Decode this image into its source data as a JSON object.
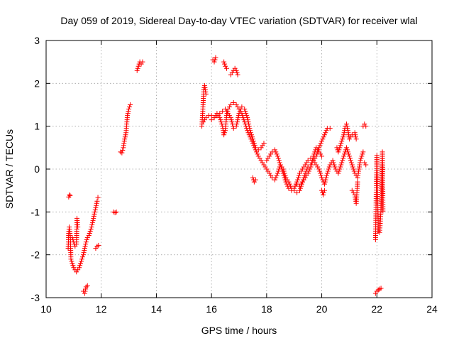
{
  "chart_data": {
    "type": "scatter",
    "title": "Day 059 of 2019, Sidereal Day-to-day VTEC variation (SDTVAR) for receiver wlal",
    "xlabel": "GPS time / hours",
    "ylabel": "SDTVAR / TECUs",
    "xlim": [
      10,
      24
    ],
    "ylim": [
      -3,
      3
    ],
    "xticks": [
      10,
      12,
      14,
      16,
      18,
      20,
      22,
      24
    ],
    "yticks": [
      -3,
      -2,
      -1,
      0,
      1,
      2,
      3
    ],
    "grid": true,
    "marker": "+",
    "color": "#ff0000",
    "series": [
      {
        "name": "SDTVAR",
        "segments": [
          [
            [
              10.8,
              -1.85
            ],
            [
              10.82,
              -1.5
            ],
            [
              10.84,
              -1.35
            ],
            [
              10.86,
              -1.45
            ],
            [
              10.88,
              -1.6
            ],
            [
              10.9,
              -2.1
            ],
            [
              10.95,
              -2.2
            ],
            [
              11.0,
              -2.3
            ],
            [
              11.05,
              -2.35
            ],
            [
              11.1,
              -2.4
            ],
            [
              11.15,
              -2.35
            ],
            [
              11.2,
              -2.3
            ],
            [
              11.25,
              -2.2
            ],
            [
              11.3,
              -2.1
            ],
            [
              11.35,
              -2.0
            ],
            [
              11.4,
              -1.85
            ],
            [
              11.45,
              -1.7
            ],
            [
              11.5,
              -1.6
            ],
            [
              11.55,
              -1.55
            ],
            [
              11.6,
              -1.45
            ],
            [
              11.65,
              -1.35
            ],
            [
              11.7,
              -1.2
            ],
            [
              11.75,
              -1.05
            ],
            [
              11.8,
              -0.9
            ],
            [
              11.85,
              -0.75
            ],
            [
              11.88,
              -0.66
            ]
          ],
          [
            [
              10.82,
              -0.65
            ],
            [
              10.85,
              -0.6
            ],
            [
              10.87,
              -0.62
            ]
          ],
          [
            [
              10.95,
              -1.6
            ],
            [
              11.0,
              -1.7
            ],
            [
              11.05,
              -1.8
            ],
            [
              11.1,
              -1.75
            ],
            [
              11.12,
              -1.15
            ],
            [
              11.15,
              -1.35
            ]
          ],
          [
            [
              11.35,
              -2.85
            ],
            [
              11.4,
              -2.9
            ],
            [
              11.45,
              -2.75
            ],
            [
              11.5,
              -2.72
            ]
          ],
          [
            [
              11.8,
              -1.85
            ],
            [
              11.85,
              -1.8
            ],
            [
              11.9,
              -1.78
            ]
          ],
          [
            [
              12.45,
              -1.0
            ],
            [
              12.5,
              -1.02
            ],
            [
              12.55,
              -1.0
            ]
          ],
          [
            [
              12.7,
              0.4
            ],
            [
              12.75,
              0.38
            ],
            [
              12.8,
              0.5
            ],
            [
              12.85,
              0.7
            ],
            [
              12.9,
              0.85
            ],
            [
              12.95,
              1.25
            ],
            [
              13.0,
              1.4
            ],
            [
              13.05,
              1.5
            ]
          ],
          [
            [
              13.3,
              2.3
            ],
            [
              13.35,
              2.4
            ],
            [
              13.4,
              2.5
            ],
            [
              13.45,
              2.45
            ],
            [
              13.5,
              2.5
            ]
          ],
          [
            [
              15.65,
              1.0
            ],
            [
              15.68,
              1.3
            ],
            [
              15.7,
              1.6
            ],
            [
              15.72,
              1.85
            ],
            [
              15.75,
              1.95
            ],
            [
              15.8,
              1.75
            ]
          ],
          [
            [
              15.7,
              1.1
            ],
            [
              15.8,
              1.2
            ],
            [
              15.9,
              1.25
            ],
            [
              16.0,
              1.25
            ],
            [
              16.1,
              1.2
            ],
            [
              16.2,
              1.3
            ],
            [
              16.3,
              1.2
            ],
            [
              16.4,
              1.0
            ],
            [
              16.45,
              0.8
            ],
            [
              16.5,
              0.9
            ],
            [
              16.55,
              1.25
            ],
            [
              16.6,
              1.4
            ],
            [
              16.7,
              1.5
            ],
            [
              16.8,
              1.55
            ],
            [
              16.9,
              1.5
            ],
            [
              17.0,
              1.4
            ],
            [
              17.1,
              1.3
            ],
            [
              17.2,
              1.1
            ],
            [
              17.3,
              0.9
            ],
            [
              17.4,
              0.75
            ],
            [
              17.5,
              0.6
            ],
            [
              17.6,
              0.45
            ],
            [
              17.7,
              0.3
            ],
            [
              17.8,
              0.2
            ],
            [
              17.9,
              0.1
            ],
            [
              18.0,
              0.0
            ],
            [
              18.1,
              -0.1
            ],
            [
              18.2,
              -0.2
            ],
            [
              18.3,
              -0.25
            ],
            [
              18.4,
              -0.1
            ],
            [
              18.5,
              0.1
            ],
            [
              18.6,
              0.0
            ],
            [
              18.7,
              -0.2
            ],
            [
              18.8,
              -0.3
            ],
            [
              18.9,
              -0.45
            ],
            [
              19.0,
              -0.5
            ],
            [
              19.1,
              -0.55
            ],
            [
              19.2,
              -0.5
            ],
            [
              19.3,
              -0.3
            ],
            [
              19.4,
              -0.1
            ],
            [
              19.5,
              0.05
            ],
            [
              19.6,
              0.1
            ],
            [
              19.7,
              0.2
            ],
            [
              19.8,
              0.3
            ],
            [
              19.9,
              0.5
            ],
            [
              20.0,
              0.65
            ],
            [
              20.1,
              0.8
            ],
            [
              20.2,
              0.95
            ],
            [
              20.3,
              0.95
            ]
          ],
          [
            [
              16.0,
              1.15
            ],
            [
              16.1,
              1.2
            ],
            [
              16.2,
              1.25
            ],
            [
              16.3,
              1.3
            ],
            [
              16.4,
              1.35
            ],
            [
              16.5,
              1.4
            ],
            [
              16.6,
              1.3
            ],
            [
              16.7,
              1.2
            ],
            [
              16.8,
              0.95
            ],
            [
              16.9,
              1.0
            ],
            [
              17.0,
              1.3
            ],
            [
              17.1,
              1.45
            ],
            [
              17.2,
              1.4
            ],
            [
              17.3,
              1.2
            ],
            [
              17.4,
              0.9
            ],
            [
              17.5,
              0.7
            ],
            [
              17.6,
              0.5
            ],
            [
              17.7,
              0.45
            ],
            [
              17.8,
              0.5
            ],
            [
              17.9,
              0.6
            ]
          ],
          [
            [
              16.05,
              2.55
            ],
            [
              16.1,
              2.5
            ],
            [
              16.15,
              2.6
            ]
          ],
          [
            [
              16.45,
              2.5
            ],
            [
              16.5,
              2.4
            ],
            [
              16.55,
              2.35
            ]
          ],
          [
            [
              16.7,
              2.2
            ],
            [
              16.75,
              2.25
            ],
            [
              16.8,
              2.3
            ],
            [
              16.85,
              2.35
            ],
            [
              16.9,
              2.3
            ],
            [
              16.95,
              2.2
            ]
          ],
          [
            [
              17.5,
              -0.2
            ],
            [
              17.55,
              -0.3
            ],
            [
              17.6,
              -0.25
            ]
          ],
          [
            [
              18.0,
              0.2
            ],
            [
              18.1,
              0.3
            ],
            [
              18.2,
              0.4
            ],
            [
              18.3,
              0.45
            ],
            [
              18.4,
              0.3
            ],
            [
              18.5,
              0.1
            ],
            [
              18.6,
              -0.1
            ],
            [
              18.7,
              -0.3
            ],
            [
              18.8,
              -0.45
            ],
            [
              18.9,
              -0.5
            ],
            [
              19.0,
              -0.45
            ],
            [
              19.1,
              -0.3
            ],
            [
              19.2,
              -0.1
            ],
            [
              19.3,
              0.0
            ],
            [
              19.4,
              0.1
            ],
            [
              19.5,
              0.2
            ],
            [
              19.6,
              0.25
            ],
            [
              19.7,
              0.2
            ],
            [
              19.8,
              0.1
            ],
            [
              19.9,
              0.0
            ],
            [
              20.0,
              -0.2
            ],
            [
              20.1,
              -0.35
            ],
            [
              20.2,
              -0.1
            ],
            [
              20.3,
              0.1
            ],
            [
              20.4,
              0.2
            ],
            [
              20.5,
              0.0
            ],
            [
              20.6,
              -0.1
            ],
            [
              20.7,
              0.1
            ],
            [
              20.8,
              0.3
            ],
            [
              20.9,
              0.5
            ],
            [
              21.0,
              0.3
            ],
            [
              21.1,
              0.1
            ],
            [
              21.2,
              -0.1
            ],
            [
              21.3,
              -0.2
            ],
            [
              21.4,
              0.2
            ],
            [
              21.5,
              0.4
            ]
          ],
          [
            [
              19.1,
              -0.35
            ],
            [
              19.2,
              -0.4
            ],
            [
              19.3,
              -0.3
            ],
            [
              19.4,
              -0.2
            ],
            [
              19.5,
              -0.1
            ],
            [
              19.6,
              0.05
            ],
            [
              19.7,
              0.3
            ],
            [
              19.8,
              0.5
            ],
            [
              19.9,
              0.4
            ],
            [
              20.0,
              0.3
            ]
          ],
          [
            [
              20.0,
              -0.5
            ],
            [
              20.05,
              -0.6
            ],
            [
              20.1,
              -0.5
            ]
          ],
          [
            [
              20.55,
              0.5
            ],
            [
              20.6,
              0.4
            ],
            [
              20.7,
              0.6
            ],
            [
              20.8,
              0.8
            ],
            [
              20.85,
              1.0
            ],
            [
              20.9,
              1.05
            ],
            [
              20.95,
              0.9
            ],
            [
              21.0,
              0.7
            ],
            [
              21.1,
              0.8
            ],
            [
              21.2,
              0.85
            ],
            [
              21.25,
              0.7
            ]
          ],
          [
            [
              21.1,
              -0.5
            ],
            [
              21.2,
              -0.6
            ],
            [
              21.25,
              -0.8
            ],
            [
              21.3,
              -0.3
            ]
          ],
          [
            [
              21.5,
              1.0
            ],
            [
              21.55,
              1.05
            ],
            [
              21.6,
              1.0
            ]
          ],
          [
            [
              21.55,
              0.15
            ],
            [
              21.6,
              0.1
            ]
          ],
          [
            [
              21.95,
              -1.65
            ],
            [
              22.0,
              0.32
            ],
            [
              22.05,
              -1.45
            ],
            [
              22.1,
              -1.48
            ],
            [
              22.15,
              -0.95
            ],
            [
              22.2,
              0.4
            ],
            [
              22.22,
              -0.98
            ]
          ],
          [
            [
              21.95,
              -2.9
            ],
            [
              22.0,
              -2.85
            ],
            [
              22.05,
              -2.82
            ],
            [
              22.1,
              -2.8
            ],
            [
              22.15,
              -2.78
            ]
          ]
        ]
      }
    ]
  }
}
